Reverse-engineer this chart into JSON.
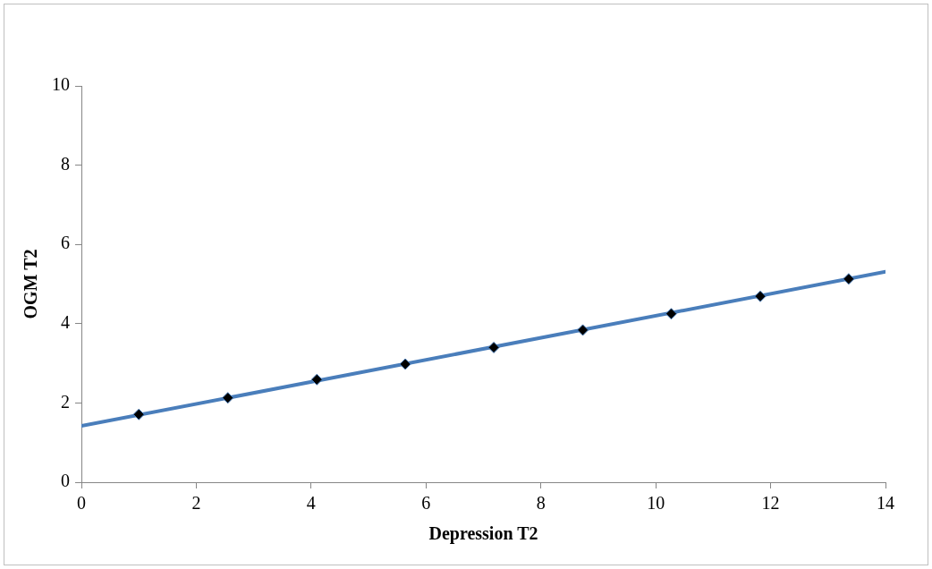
{
  "chart_data": {
    "type": "scatter",
    "xlabel": "Depression T2",
    "ylabel": "OGM T2",
    "xlim": [
      0,
      14
    ],
    "xticks": [
      0,
      2,
      4,
      6,
      8,
      10,
      12,
      14
    ],
    "ylim": [
      0,
      10
    ],
    "yticks": [
      0,
      2,
      4,
      6,
      8,
      10
    ],
    "grid": false,
    "legend": false,
    "series": [
      {
        "type": "line",
        "color": "#4a7ebb",
        "x": [
          0,
          14
        ],
        "values": [
          1.42,
          5.31
        ],
        "marker": "none",
        "line_style": "solid"
      },
      {
        "color": "#000000",
        "x": [
          1.0,
          2.55,
          4.1,
          5.64,
          7.18,
          8.73,
          10.27,
          11.82,
          13.36
        ],
        "values": [
          1.71,
          2.13,
          2.59,
          2.98,
          3.4,
          3.84,
          4.25,
          4.69,
          5.13
        ],
        "marker": "diamond"
      }
    ]
  }
}
